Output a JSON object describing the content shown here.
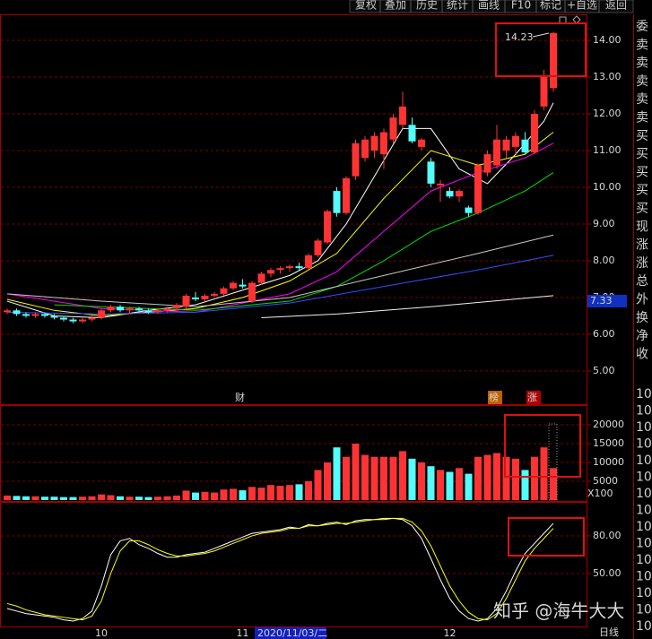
{
  "toolbar": [
    "复权",
    "叠加",
    "历史",
    "统计",
    "画线",
    "F10",
    "标记",
    "+自选",
    "返回"
  ],
  "side_panel": {
    "row_labels": [
      "委",
      "卖",
      "卖",
      "卖",
      "卖",
      "卖",
      "买",
      "买",
      "买",
      "买",
      "买",
      "现",
      "涨",
      "涨",
      "总",
      "外",
      "换",
      "净",
      "收"
    ],
    "time_labels": [
      "10:",
      "10:",
      "10:",
      "10:",
      "10:",
      "10:",
      "10:",
      "10:",
      "10:",
      "10:",
      "10:",
      "10:",
      "10:",
      "10:",
      "10:"
    ]
  },
  "watermark": "知乎 @海牛大大",
  "chart_data": [
    {
      "type": "candlestick",
      "categories": [
        null,
        null,
        null,
        null,
        null,
        null,
        null,
        null,
        null,
        null,
        "10",
        null,
        null,
        null,
        null,
        null,
        null,
        null,
        null,
        null,
        null,
        null,
        null,
        null,
        null,
        "11",
        null,
        null,
        null,
        null,
        null,
        null,
        null,
        null,
        null,
        null,
        null,
        null,
        null,
        null,
        null,
        null,
        null,
        null,
        null,
        null,
        null,
        "12",
        null,
        null,
        null,
        null,
        null,
        null,
        null,
        null,
        null,
        null,
        null
      ],
      "open": [
        6.6,
        6.65,
        6.55,
        6.5,
        6.55,
        6.5,
        6.45,
        6.4,
        6.35,
        6.4,
        6.45,
        6.65,
        6.75,
        6.65,
        6.7,
        6.65,
        6.6,
        6.65,
        6.7,
        6.75,
        7.0,
        6.95,
        7.05,
        7.1,
        7.25,
        7.35,
        6.9,
        7.4,
        7.65,
        7.75,
        7.8,
        7.85,
        7.8,
        8.15,
        8.5,
        9.9,
        9.3,
        10.3,
        10.8,
        11.0,
        10.9,
        11.3,
        11.7,
        11.7,
        11.1,
        10.7,
        10.05,
        9.9,
        9.75,
        9.45,
        9.3,
        10.4,
        10.6,
        11.0,
        11.1,
        11.3,
        10.95,
        12.2,
        12.7
      ],
      "high": [
        6.7,
        6.7,
        6.6,
        6.6,
        6.6,
        6.55,
        6.5,
        6.45,
        6.45,
        6.5,
        6.7,
        6.8,
        6.8,
        6.75,
        6.75,
        6.7,
        6.7,
        6.75,
        6.85,
        7.1,
        7.15,
        7.1,
        7.15,
        7.3,
        7.45,
        7.5,
        7.45,
        7.7,
        7.8,
        7.85,
        7.9,
        7.95,
        8.2,
        8.6,
        9.4,
        10.0,
        10.3,
        11.3,
        11.4,
        11.5,
        11.6,
        12.0,
        12.6,
        11.9,
        11.35,
        10.8,
        10.2,
        10.0,
        9.95,
        9.5,
        10.65,
        11.0,
        11.7,
        11.4,
        11.5,
        11.5,
        12.1,
        13.2,
        14.23
      ],
      "low": [
        6.55,
        6.5,
        6.45,
        6.45,
        6.45,
        6.4,
        6.35,
        6.3,
        6.3,
        6.35,
        6.4,
        6.6,
        6.6,
        6.55,
        6.6,
        6.55,
        6.55,
        6.6,
        6.65,
        6.7,
        6.9,
        6.9,
        7.0,
        7.05,
        7.2,
        7.25,
        6.85,
        7.35,
        7.55,
        7.65,
        7.7,
        7.75,
        7.75,
        8.1,
        8.45,
        9.2,
        9.25,
        10.2,
        10.7,
        10.8,
        10.5,
        11.2,
        11.6,
        11.2,
        11.0,
        10.0,
        9.6,
        9.7,
        9.6,
        9.2,
        9.25,
        10.3,
        10.5,
        10.8,
        10.9,
        10.9,
        10.9,
        12.1,
        12.6
      ],
      "close": [
        6.65,
        6.55,
        6.5,
        6.55,
        6.5,
        6.45,
        6.4,
        6.35,
        6.4,
        6.45,
        6.65,
        6.75,
        6.65,
        6.7,
        6.65,
        6.6,
        6.65,
        6.7,
        6.8,
        7.05,
        6.95,
        7.05,
        7.1,
        7.25,
        7.4,
        7.3,
        7.4,
        7.65,
        7.75,
        7.8,
        7.85,
        7.8,
        8.15,
        8.55,
        9.35,
        9.3,
        10.25,
        11.2,
        11.3,
        11.4,
        11.5,
        11.9,
        12.2,
        11.25,
        11.3,
        10.1,
        10.1,
        9.75,
        9.9,
        9.3,
        10.6,
        10.9,
        11.3,
        11.3,
        11.4,
        10.95,
        12.0,
        13.0,
        14.2
      ],
      "up_color": "#ff3333",
      "down_color": "#54fcfc",
      "series": [
        {
          "color": "#ffffff",
          "x": [
            0,
            5,
            10,
            15,
            20,
            25,
            30,
            33,
            36,
            39,
            42,
            45,
            48,
            51,
            54,
            57,
            58
          ],
          "values": [
            6.9,
            6.5,
            6.45,
            6.65,
            6.8,
            7.2,
            7.6,
            8.0,
            9.0,
            10.3,
            11.6,
            11.6,
            10.5,
            10.1,
            10.9,
            11.8,
            12.3
          ]
        },
        {
          "color": "#ffff00",
          "x": [
            0,
            5,
            10,
            15,
            20,
            25,
            30,
            35,
            40,
            45,
            50,
            55,
            58
          ],
          "values": [
            6.95,
            6.65,
            6.5,
            6.6,
            6.7,
            7.0,
            7.45,
            8.2,
            9.7,
            11.0,
            10.6,
            10.9,
            11.5
          ]
        },
        {
          "color": "#ff00ff",
          "x": [
            0,
            10,
            20,
            30,
            35,
            40,
            45,
            50,
            55,
            58
          ],
          "values": [
            7.1,
            6.7,
            6.6,
            7.1,
            7.7,
            8.8,
            9.9,
            10.4,
            10.8,
            11.2
          ]
        },
        {
          "color": "#00e000",
          "x": [
            5,
            10,
            20,
            30,
            35,
            40,
            45,
            50,
            55,
            58
          ],
          "values": [
            6.8,
            6.75,
            6.65,
            6.9,
            7.3,
            8.0,
            8.8,
            9.3,
            9.9,
            10.4
          ]
        },
        {
          "color": "#c8c8c8",
          "x": [
            0,
            10,
            20,
            30,
            40,
            50,
            58
          ],
          "values": [
            7.1,
            6.9,
            6.75,
            7.0,
            7.6,
            8.2,
            8.7
          ]
        },
        {
          "color": "#3050ff",
          "x": [
            0,
            10,
            20,
            30,
            40,
            50,
            58
          ],
          "values": [
            6.6,
            6.55,
            6.6,
            6.85,
            7.3,
            7.75,
            8.15
          ]
        },
        {
          "color": "#f0f0f0",
          "x": [
            27,
            35,
            45,
            58
          ],
          "values": [
            6.45,
            6.55,
            6.75,
            7.05
          ]
        }
      ],
      "ylim": [
        4.12,
        14.66
      ],
      "yticks": [
        {
          "value": 14,
          "label": "14.00"
        },
        {
          "value": 13,
          "label": "13.00"
        },
        {
          "value": 12,
          "label": "12.00"
        },
        {
          "value": 11,
          "label": "11.00"
        },
        {
          "value": 10,
          "label": "10.00"
        },
        {
          "value": 9,
          "label": "9.00"
        },
        {
          "value": 8,
          "label": "8.00"
        },
        {
          "value": 7,
          "label": "7.00"
        },
        {
          "value": 6,
          "label": "6.00"
        },
        {
          "value": 5,
          "label": "5.00"
        }
      ],
      "grid": true,
      "high_label": "14.23",
      "cursor_value": "7.33",
      "markers": [
        "财",
        "榜",
        "涨"
      ],
      "cursor_date": "2020/11/03/二",
      "period": "日线"
    },
    {
      "type": "bar",
      "values": [
        1200,
        1100,
        1000,
        1000,
        900,
        900,
        800,
        800,
        900,
        1000,
        1500,
        1300,
        1000,
        900,
        900,
        800,
        900,
        1000,
        1200,
        2500,
        2000,
        2200,
        2000,
        2800,
        3000,
        2600,
        3500,
        3300,
        4000,
        3800,
        4000,
        4200,
        5000,
        8000,
        10000,
        14000,
        11500,
        15000,
        12000,
        11500,
        11500,
        11500,
        13000,
        11000,
        10000,
        9000,
        8000,
        7500,
        8500,
        7000,
        11500,
        12000,
        12500,
        11500,
        11000,
        8000,
        11500,
        14000,
        8500
      ],
      "ylim": [
        0,
        25000
      ],
      "yticks": [
        5000,
        10000,
        15000,
        20000
      ],
      "grid": true,
      "unit_label": "X100"
    },
    {
      "type": "line",
      "series": [
        {
          "color": "#ffffff",
          "values": [
            22,
            20,
            18,
            17,
            16,
            15,
            13,
            12,
            14,
            20,
            40,
            65,
            76,
            78,
            73,
            70,
            66,
            63,
            63,
            65,
            66,
            67,
            70,
            73,
            76,
            79,
            82,
            83,
            84,
            85,
            87,
            86,
            89,
            88,
            90,
            91,
            89,
            92,
            93,
            93,
            94,
            94,
            93,
            88,
            78,
            62,
            45,
            30,
            20,
            14,
            12,
            14,
            22,
            36,
            52,
            66,
            74,
            82,
            90
          ]
        },
        {
          "color": "#ffff00",
          "values": [
            26,
            24,
            21,
            19,
            17,
            16,
            15,
            14,
            13,
            16,
            28,
            50,
            68,
            76,
            76,
            73,
            69,
            66,
            64,
            64,
            65,
            66,
            68,
            71,
            74,
            77,
            80,
            82,
            83,
            84,
            86,
            86,
            88,
            88,
            89,
            90,
            90,
            91,
            92,
            93,
            93,
            94,
            94,
            91,
            84,
            72,
            56,
            40,
            28,
            19,
            14,
            13,
            18,
            30,
            45,
            60,
            70,
            78,
            86
          ]
        }
      ],
      "ylim": [
        7,
        105
      ],
      "yticks": [
        {
          "value": 50,
          "label": "50.00"
        },
        {
          "value": 80,
          "label": "80.00"
        }
      ],
      "grid": true
    }
  ]
}
